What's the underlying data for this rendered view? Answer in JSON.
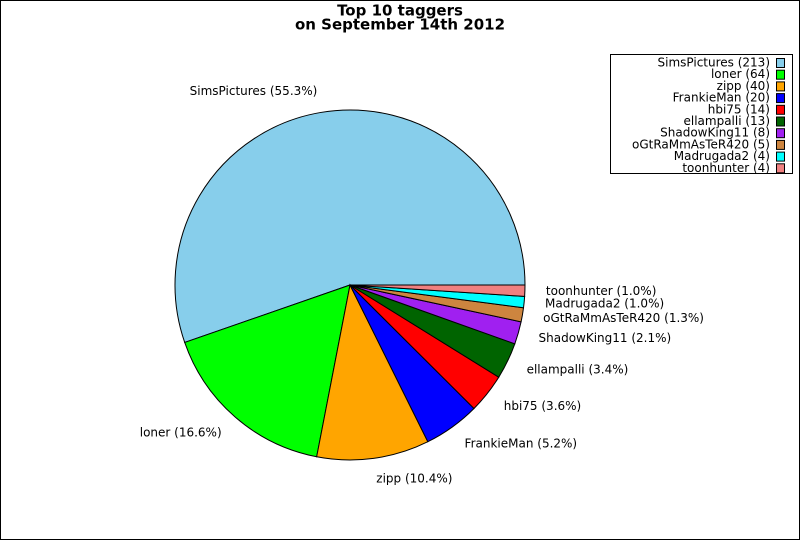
{
  "chart_data": {
    "type": "pie",
    "title": [
      "Top 10 taggers",
      "on September 14th 2012"
    ],
    "values": [
      213,
      64,
      40,
      20,
      14,
      13,
      8,
      5,
      4,
      4
    ],
    "slice_labels": [
      "SimsPictures (55.3%)",
      "loner (16.6%)",
      "zipp (10.4%)",
      "FrankieMan (5.2%)",
      "hbi75 (3.6%)",
      "ellampalli (3.4%)",
      "ShadowKing11 (2.1%)",
      "oGtRaMmAsTeR420 (1.3%)",
      "Madrugada2 (1.0%)",
      "toonhunter (1.0%)"
    ],
    "legend_labels": [
      "SimsPictures (213)",
      "loner (64)",
      "zipp (40)",
      "FrankieMan (20)",
      "hbi75 (14)",
      "ellampalli (13)",
      "ShadowKing11 (8)",
      "oGtRaMmAsTeR420 (5)",
      "Madrugada2 (4)",
      "toonhunter (4)"
    ],
    "colors": [
      "#87ceeb",
      "#00ff00",
      "#ffa500",
      "#0000ff",
      "#ff0000",
      "#006400",
      "#a020f0",
      "#cd853f",
      "#00ffff",
      "#f08080"
    ],
    "legend": "upper right"
  }
}
